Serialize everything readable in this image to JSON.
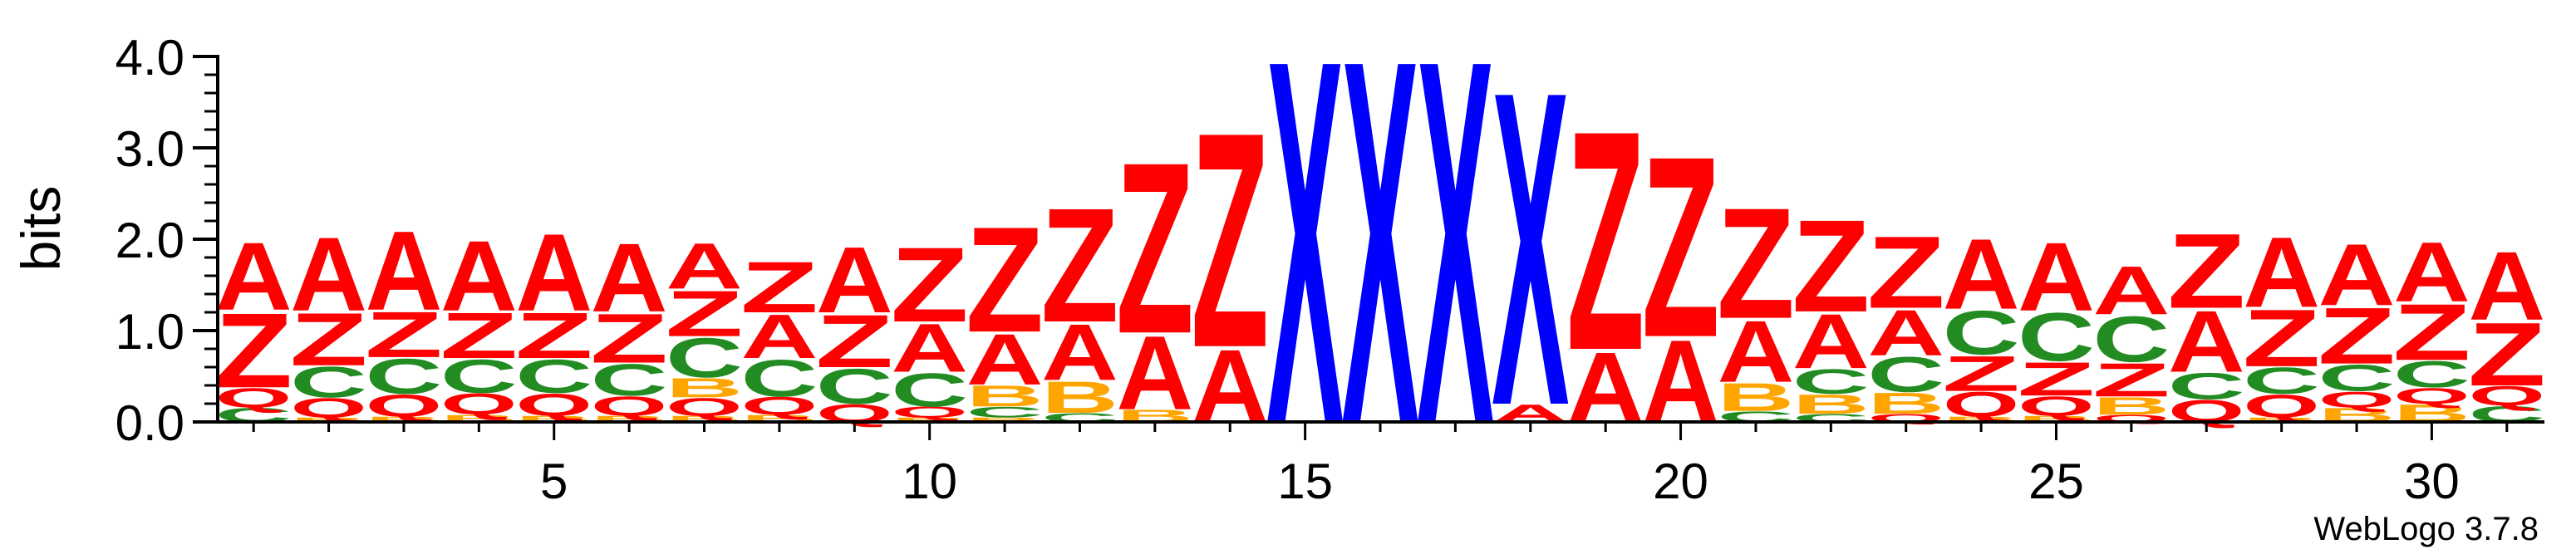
{
  "chart_data": {
    "type": "sequence-logo",
    "ylabel": "bits",
    "ylim": [
      0,
      4
    ],
    "y_ticks": [
      "0.0",
      "1.0",
      "2.0",
      "3.0",
      "4.0"
    ],
    "x_range": [
      1,
      31
    ],
    "x_ticks": [
      "5",
      "10",
      "15",
      "20",
      "25",
      "30"
    ],
    "x_tick_values": [
      5,
      10,
      15,
      20,
      25,
      30
    ],
    "colors": {
      "A": "#ff0000",
      "Z": "#ff0000",
      "C": "#228b22",
      "B": "#ffa500",
      "Q": "#ff0000",
      "X": "#0000ff"
    },
    "positions": [
      {
        "pos": 1,
        "letters": [
          [
            "C",
            0.16
          ],
          [
            "Q",
            0.22
          ],
          [
            "Z",
            0.85
          ],
          [
            "A",
            0.77
          ]
        ]
      },
      {
        "pos": 2,
        "letters": [
          [
            "B",
            0.05
          ],
          [
            "Q",
            0.22
          ],
          [
            "C",
            0.35
          ],
          [
            "Z",
            0.6
          ],
          [
            "A",
            0.84
          ]
        ]
      },
      {
        "pos": 3,
        "letters": [
          [
            "B",
            0.06
          ],
          [
            "Q",
            0.25
          ],
          [
            "C",
            0.4
          ],
          [
            "Z",
            0.52
          ],
          [
            "A",
            0.9
          ]
        ]
      },
      {
        "pos": 4,
        "letters": [
          [
            "B",
            0.08
          ],
          [
            "Q",
            0.24
          ],
          [
            "C",
            0.38
          ],
          [
            "Z",
            0.52
          ],
          [
            "A",
            0.8
          ]
        ]
      },
      {
        "pos": 5,
        "letters": [
          [
            "B",
            0.07
          ],
          [
            "Q",
            0.25
          ],
          [
            "C",
            0.38
          ],
          [
            "Z",
            0.52
          ],
          [
            "A",
            0.88
          ]
        ]
      },
      {
        "pos": 6,
        "letters": [
          [
            "B",
            0.07
          ],
          [
            "Q",
            0.22
          ],
          [
            "C",
            0.36
          ],
          [
            "Z",
            0.56
          ],
          [
            "A",
            0.78
          ]
        ]
      },
      {
        "pos": 7,
        "letters": [
          [
            "B",
            0.07
          ],
          [
            "Q",
            0.2
          ],
          [
            "B",
            0.22
          ],
          [
            "C",
            0.45
          ],
          [
            "Z",
            0.52
          ],
          [
            "A",
            0.52
          ]
        ]
      },
      {
        "pos": 8,
        "letters": [
          [
            "B",
            0.08
          ],
          [
            "Q",
            0.2
          ],
          [
            "C",
            0.42
          ],
          [
            "A",
            0.5
          ],
          [
            "Z",
            0.58
          ]
        ]
      },
      {
        "pos": 9,
        "letters": [
          [
            "Q",
            0.2
          ],
          [
            "C",
            0.4
          ],
          [
            "Z",
            0.6
          ],
          [
            "A",
            0.75
          ]
        ]
      },
      {
        "pos": 10,
        "letters": [
          [
            "B",
            0.05
          ],
          [
            "Q",
            0.12
          ],
          [
            "C",
            0.38
          ],
          [
            "A",
            0.55
          ],
          [
            "Z",
            0.85
          ]
        ]
      },
      {
        "pos": 11,
        "letters": [
          [
            "B",
            0.05
          ],
          [
            "C",
            0.12
          ],
          [
            "B",
            0.24
          ],
          [
            "A",
            0.58
          ],
          [
            "Z",
            1.2
          ]
        ]
      },
      {
        "pos": 12,
        "letters": [
          [
            "C",
            0.1
          ],
          [
            "B",
            0.36
          ],
          [
            "A",
            0.64
          ],
          [
            "Z",
            1.3
          ]
        ]
      },
      {
        "pos": 13,
        "letters": [
          [
            "B",
            0.14
          ],
          [
            "A",
            0.84
          ],
          [
            "Z",
            1.95
          ]
        ]
      },
      {
        "pos": 14,
        "letters": [
          [
            "A",
            0.83
          ],
          [
            "Z",
            2.45
          ]
        ]
      },
      {
        "pos": 15,
        "letters": [
          [
            "X",
            4.15
          ]
        ]
      },
      {
        "pos": 16,
        "letters": [
          [
            "X",
            4.15
          ]
        ]
      },
      {
        "pos": 17,
        "letters": [
          [
            "X",
            4.15
          ]
        ]
      },
      {
        "pos": 18,
        "letters": [
          [
            "A",
            0.2
          ],
          [
            "X",
            3.58
          ]
        ]
      },
      {
        "pos": 19,
        "letters": [
          [
            "A",
            0.8
          ],
          [
            "Z",
            2.5
          ]
        ]
      },
      {
        "pos": 20,
        "letters": [
          [
            "A",
            0.94
          ],
          [
            "Z",
            2.06
          ]
        ]
      },
      {
        "pos": 21,
        "letters": [
          [
            "C",
            0.12
          ],
          [
            "B",
            0.32
          ],
          [
            "A",
            0.7
          ],
          [
            "Z",
            1.26
          ]
        ]
      },
      {
        "pos": 22,
        "letters": [
          [
            "C",
            0.09
          ],
          [
            "B",
            0.22
          ],
          [
            "C",
            0.28
          ],
          [
            "A",
            0.62
          ],
          [
            "Z",
            1.05
          ]
        ]
      },
      {
        "pos": 23,
        "letters": [
          [
            "Q",
            0.09
          ],
          [
            "B",
            0.24
          ],
          [
            "C",
            0.4
          ],
          [
            "A",
            0.52
          ],
          [
            "Z",
            0.82
          ]
        ]
      },
      {
        "pos": 24,
        "letters": [
          [
            "B",
            0.06
          ],
          [
            "Q",
            0.28
          ],
          [
            "Z",
            0.4
          ],
          [
            "C",
            0.5
          ],
          [
            "A",
            0.8
          ]
        ]
      },
      {
        "pos": 25,
        "letters": [
          [
            "B",
            0.07
          ],
          [
            "Q",
            0.22
          ],
          [
            "Z",
            0.38
          ],
          [
            "C",
            0.55
          ],
          [
            "A",
            0.78
          ]
        ]
      },
      {
        "pos": 26,
        "letters": [
          [
            "Q",
            0.08
          ],
          [
            "B",
            0.2
          ],
          [
            "Z",
            0.38
          ],
          [
            "C",
            0.52
          ],
          [
            "A",
            0.55
          ]
        ]
      },
      {
        "pos": 27,
        "letters": [
          [
            "Q",
            0.25
          ],
          [
            "C",
            0.3
          ],
          [
            "A",
            0.7
          ],
          [
            "Z",
            0.85
          ]
        ]
      },
      {
        "pos": 28,
        "letters": [
          [
            "B",
            0.05
          ],
          [
            "Q",
            0.26
          ],
          [
            "C",
            0.3
          ],
          [
            "Z",
            0.65
          ],
          [
            "A",
            0.8
          ]
        ]
      },
      {
        "pos": 29,
        "letters": [
          [
            "B",
            0.16
          ],
          [
            "Q",
            0.18
          ],
          [
            "C",
            0.3
          ],
          [
            "Z",
            0.64
          ],
          [
            "A",
            0.7
          ]
        ]
      },
      {
        "pos": 30,
        "letters": [
          [
            "B",
            0.2
          ],
          [
            "Q",
            0.18
          ],
          [
            "C",
            0.3
          ],
          [
            "Z",
            0.64
          ],
          [
            "A",
            0.68
          ]
        ]
      },
      {
        "pos": 31,
        "letters": [
          [
            "C",
            0.18
          ],
          [
            "Q",
            0.22
          ],
          [
            "Z",
            0.72
          ],
          [
            "A",
            0.78
          ]
        ]
      }
    ]
  },
  "footer": {
    "credit": "WebLogo 3.7.8"
  }
}
